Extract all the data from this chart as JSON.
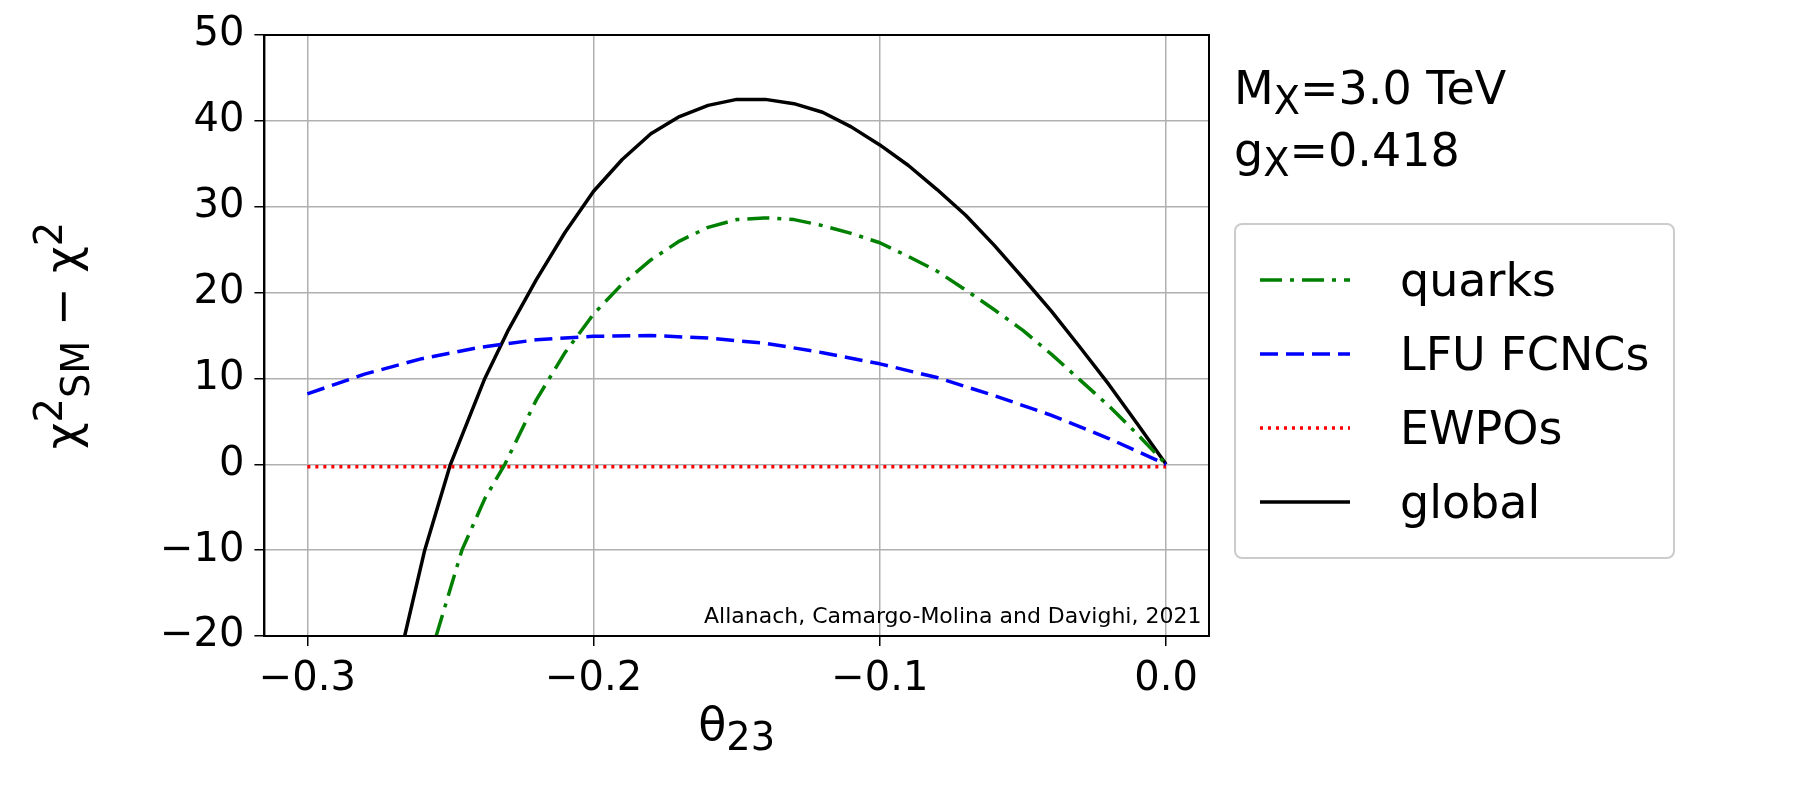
{
  "chart_data": {
    "type": "line",
    "xlabel": "θ$_{23}$",
    "ylabel": "χ$^{2}$$_{SM}$ − χ$^{2}$",
    "annotations": [
      "M$_{X}$=3.0 TeV",
      "g$_{X}$=0.418",
      "Allanach, Camargo-Molina and Davighi, 2021"
    ],
    "xlim": [
      -0.315,
      0.015
    ],
    "ylim": [
      -20,
      50
    ],
    "xticks": [
      {
        "value": -0.3,
        "label": "−0.3"
      },
      {
        "value": -0.2,
        "label": "−0.2"
      },
      {
        "value": -0.1,
        "label": "−0.1"
      },
      {
        "value": 0,
        "label": "0.0"
      }
    ],
    "yticks": [
      {
        "value": -20,
        "label": "−20"
      },
      {
        "value": -10,
        "label": "−10"
      },
      0,
      10,
      20,
      30,
      40,
      50
    ],
    "grid": true,
    "legend": "right",
    "marker": "none",
    "series": [
      {
        "name": "quarks",
        "color": "#008000",
        "line_style": "dashdot",
        "x": [
          -0.255,
          -0.246,
          -0.238,
          -0.231,
          -0.22,
          -0.21,
          -0.2,
          -0.19,
          -0.18,
          -0.17,
          -0.16,
          -0.15,
          -0.14,
          -0.13,
          -0.12,
          -0.11,
          -0.1,
          -0.09,
          -0.08,
          -0.07,
          -0.06,
          -0.05,
          -0.04,
          -0.03,
          -0.02,
          -0.01,
          0
        ],
        "values": [
          -20,
          -10,
          -4,
          0,
          7.5,
          13,
          17.5,
          21,
          23.8,
          26,
          27.6,
          28.5,
          28.7,
          28.5,
          27.8,
          26.9,
          25.8,
          24.2,
          22.5,
          20.3,
          18,
          15.6,
          12.8,
          9.8,
          6.8,
          3.5,
          0
        ]
      },
      {
        "name": "LFU FCNCs",
        "color": "#0000ff",
        "line_style": "dashed",
        "x": [
          -0.3,
          -0.28,
          -0.26,
          -0.24,
          -0.22,
          -0.2,
          -0.18,
          -0.16,
          -0.14,
          -0.12,
          -0.1,
          -0.08,
          -0.06,
          -0.04,
          -0.02,
          0
        ],
        "values": [
          8.2,
          10.5,
          12.3,
          13.6,
          14.5,
          14.9,
          15,
          14.7,
          14.1,
          13,
          11.7,
          10.1,
          8,
          5.7,
          3,
          0
        ]
      },
      {
        "name": "EWPOs",
        "color": "#ff0000",
        "line_style": "dotted",
        "x": [
          -0.3,
          -0.15,
          0
        ],
        "values": [
          -0.3,
          -0.3,
          -0.3
        ]
      },
      {
        "name": "global",
        "color": "#000000",
        "line_style": "solid",
        "x": [
          -0.266,
          -0.259,
          -0.25,
          -0.238,
          -0.23,
          -0.22,
          -0.21,
          -0.2,
          -0.19,
          -0.18,
          -0.17,
          -0.16,
          -0.15,
          -0.14,
          -0.13,
          -0.12,
          -0.11,
          -0.1,
          -0.09,
          -0.08,
          -0.07,
          -0.06,
          -0.05,
          -0.04,
          -0.03,
          -0.02,
          -0.01,
          0
        ],
        "values": [
          -20,
          -10,
          0,
          10,
          15.5,
          21.5,
          27,
          31.8,
          35.5,
          38.5,
          40.5,
          41.8,
          42.5,
          42.5,
          42,
          41,
          39.3,
          37.2,
          34.8,
          32,
          29,
          25.5,
          21.7,
          17.8,
          13.6,
          9.3,
          4.7,
          0
        ]
      }
    ]
  }
}
